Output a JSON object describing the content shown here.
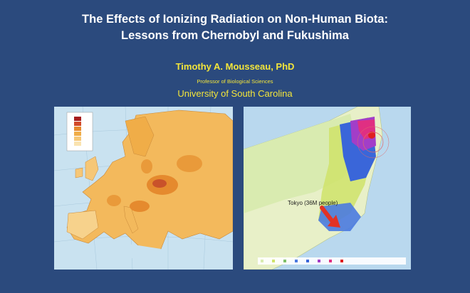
{
  "slide": {
    "title_line1": "The Effects of Ionizing Radiation on Non-Human Biota:",
    "title_line2": "Lessons from Chernobyl and Fukushima",
    "author": "Timothy A. Mousseau, PhD",
    "role": "Professor of Biological Sciences",
    "university": "University of South Carolina"
  },
  "fukushima_map": {
    "tokyo_label": "Tokyo (36M people)"
  },
  "colors": {
    "background": "#2b4a7d",
    "title": "#ffffff",
    "accent": "#f3e53a",
    "arrow": "#e33224"
  }
}
